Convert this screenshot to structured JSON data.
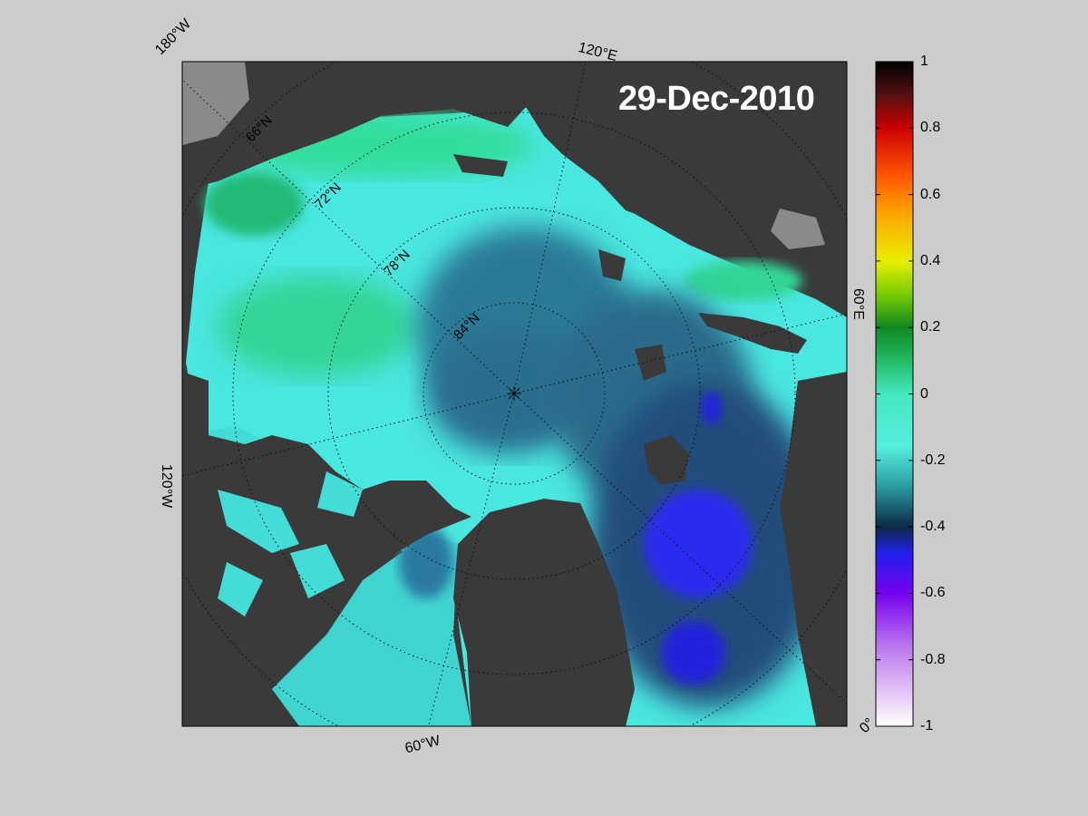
{
  "title": "29-Dec-2010",
  "map": {
    "projection": "north-polar-stereographic",
    "center_marker": "north-pole-star",
    "longitude_labels": [
      "180°W",
      "120°E",
      "60°E",
      "0°",
      "60°W",
      "120°W"
    ],
    "latitude_labels": [
      "66°N",
      "72°N",
      "78°N",
      "84°N"
    ]
  },
  "colorbar": {
    "min": -1,
    "max": 1,
    "tick_labels": [
      "1",
      "0.8",
      "0.6",
      "0.4",
      "0.2",
      "0",
      "-0.2",
      "-0.4",
      "-0.6",
      "-0.8",
      "-1"
    ],
    "tick_values": [
      1,
      0.8,
      0.6,
      0.4,
      0.2,
      0,
      -0.2,
      -0.4,
      -0.6,
      -0.8,
      -1
    ],
    "colors": {
      "1": "#000000",
      "0.8": "#cc0000",
      "0.6": "#ff8800",
      "0.4": "#e8e800",
      "0.2": "#66cc00",
      "0.1": "#007722",
      "0": "#33dd88",
      "-0.2": "#44e8e0",
      "-0.35": "#2a8a96",
      "-0.45": "#0a2a50",
      "-0.5": "#2222ee",
      "-0.6": "#8800ee",
      "-0.8": "#cc88ee",
      "-1": "#ffffff"
    }
  },
  "colors": {
    "background": "#cccccc",
    "land": "#3a3a3a",
    "land_shelf": "#8a8a8a",
    "ocean_high": "#33dd99",
    "ocean_mid": "#44e8e0",
    "ocean_low": "#2a6a88",
    "ocean_min": "#2a2aee"
  }
}
